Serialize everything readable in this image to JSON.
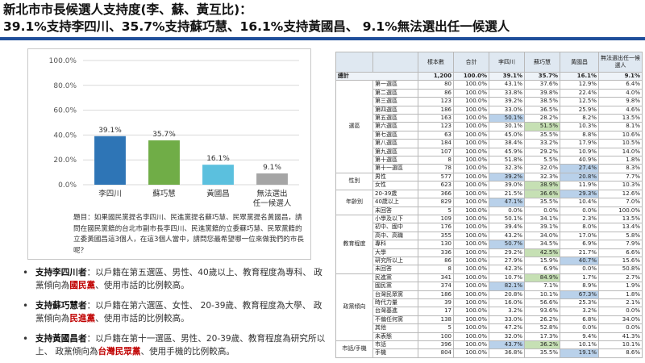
{
  "title": {
    "line1": "新北市市長候選人支持度(李、蘇、黃互比)：",
    "line2": "39.1%支持李四川、35.7%支持蘇巧慧、16.1%支持黃國昌、 9.1%無法選出任一候選人"
  },
  "chart_data": {
    "type": "bar",
    "categories": [
      "李四川",
      "蘇巧慧",
      "黃國昌",
      "無法選出任一候選人"
    ],
    "category_lines": [
      [
        "李四川"
      ],
      [
        "蘇巧慧"
      ],
      [
        "黃國昌"
      ],
      [
        "無法選出",
        "任一候選人"
      ]
    ],
    "values": [
      39.1,
      35.7,
      16.1,
      9.1
    ],
    "value_labels": [
      "39.1%",
      "35.7%",
      "16.1%",
      "9.1%"
    ],
    "colors": [
      "#2e75b6",
      "#70ad47",
      "#5bc0de",
      "#a5a5a5"
    ],
    "yticks": [
      "0.0%",
      "20.0%",
      "40.0%",
      "60.0%",
      "80.0%",
      "100.0%"
    ],
    "ylim": [
      0,
      100
    ],
    "grid": true
  },
  "question": "題目：如果國民黨提名李四川、民進黨提名蘇巧慧、民眾黨提名黃國昌，請問在國民黨籍的台北市副市長李四川、民進黨籍的立委蘇巧慧、民眾黨籍的立委黃國昌這3個人，在這3個人當中，請問您最希望哪一位來做我們的市長呢？",
  "bullets": [
    {
      "lead": "支持李四川者",
      "pre": "：以戶籍在第五選區、男性、40歲以上、教育程度為專科、 政黨傾向為",
      "party": "國民黨",
      "post": "、使用市話的比例較高。"
    },
    {
      "lead": "支持蘇巧慧者",
      "pre": "：以戶籍在第六選區、女性、 20-39歲、教育程度為大學、 政黨傾向為",
      "party": "民進黨",
      "post": "、使用市話的比例較高。"
    },
    {
      "lead": "支持黃國昌者",
      "pre": "：以戶籍在第十一選區、男性、20-39歲、教育程度為研究所以上、 政黨傾向為",
      "party": "台灣民眾黨",
      "post": "、使用手機的比例較高。"
    }
  ],
  "table": {
    "headers": [
      "",
      "",
      "樣本數",
      "合計",
      "李四川",
      "蘇巧慧",
      "黃國昌",
      "無法選出任一候選人"
    ],
    "total": [
      "總計",
      "1,200",
      "100.0%",
      "39.1%",
      "35.7%",
      "16.1%",
      "9.1%"
    ],
    "groups": [
      {
        "name": "選區",
        "rows": [
          [
            "第一選區",
            "80",
            "100.0%",
            "43.1%",
            "37.6%",
            "12.9%",
            "6.4%"
          ],
          [
            "第二選區",
            "86",
            "100.0%",
            "33.8%",
            "39.8%",
            "22.4%",
            "4.0%"
          ],
          [
            "第三選區",
            "123",
            "100.0%",
            "39.2%",
            "38.5%",
            "12.5%",
            "9.8%"
          ],
          [
            "第四選區",
            "186",
            "100.0%",
            "33.0%",
            "36.5%",
            "25.9%",
            "4.6%"
          ],
          [
            "第五選區",
            "163",
            "100.0%",
            "50.1%",
            "28.2%",
            "8.2%",
            "13.5%"
          ],
          [
            "第六選區",
            "123",
            "100.0%",
            "30.1%",
            "51.5%",
            "10.3%",
            "8.1%"
          ],
          [
            "第七選區",
            "63",
            "100.0%",
            "45.0%",
            "35.5%",
            "8.8%",
            "10.6%"
          ],
          [
            "第八選區",
            "184",
            "100.0%",
            "38.4%",
            "33.2%",
            "17.9%",
            "10.5%"
          ],
          [
            "第九選區",
            "107",
            "100.0%",
            "45.9%",
            "29.2%",
            "10.9%",
            "14.0%"
          ],
          [
            "第十選區",
            "8",
            "100.0%",
            "51.8%",
            "5.5%",
            "40.9%",
            "1.8%"
          ],
          [
            "第十一選區",
            "78",
            "100.0%",
            "32.3%",
            "32.0%",
            "27.4%",
            "8.3%"
          ]
        ]
      },
      {
        "name": "性別",
        "rows": [
          [
            "男性",
            "577",
            "100.0%",
            "39.2%",
            "32.3%",
            "20.8%",
            "7.7%"
          ],
          [
            "女性",
            "623",
            "100.0%",
            "39.0%",
            "38.9%",
            "11.9%",
            "10.3%"
          ]
        ]
      },
      {
        "name": "年齡別",
        "rows": [
          [
            "20-39歲",
            "366",
            "100.0%",
            "21.5%",
            "36.6%",
            "29.3%",
            "12.6%"
          ],
          [
            "40歲以上",
            "829",
            "100.0%",
            "47.1%",
            "35.5%",
            "10.4%",
            "7.0%"
          ],
          [
            "未回答",
            "5",
            "100.0%",
            "0.0%",
            "0.0%",
            "0.0%",
            "100.0%"
          ]
        ]
      },
      {
        "name": "教育程度",
        "rows": [
          [
            "小學及以下",
            "109",
            "100.0%",
            "50.1%",
            "34.1%",
            "2.3%",
            "13.5%"
          ],
          [
            "初中、國中",
            "176",
            "100.0%",
            "39.4%",
            "39.1%",
            "8.0%",
            "13.4%"
          ],
          [
            "高中、高職",
            "355",
            "100.0%",
            "43.2%",
            "34.0%",
            "17.0%",
            "5.8%"
          ],
          [
            "專科",
            "130",
            "100.0%",
            "50.7%",
            "34.5%",
            "6.9%",
            "7.9%"
          ],
          [
            "大學",
            "336",
            "100.0%",
            "29.2%",
            "42.5%",
            "21.7%",
            "6.6%"
          ],
          [
            "研究所以上",
            "86",
            "100.0%",
            "27.9%",
            "15.9%",
            "40.7%",
            "15.6%"
          ],
          [
            "未回答",
            "8",
            "100.0%",
            "42.3%",
            "6.9%",
            "0.0%",
            "50.8%"
          ]
        ]
      },
      {
        "name": "政黨傾向",
        "rows": [
          [
            "民進黨",
            "341",
            "100.0%",
            "10.7%",
            "84.9%",
            "1.7%",
            "2.7%"
          ],
          [
            "國民黨",
            "374",
            "100.0%",
            "82.1%",
            "7.1%",
            "8.9%",
            "1.9%"
          ],
          [
            "台灣民眾黨",
            "186",
            "100.0%",
            "20.8%",
            "10.1%",
            "67.3%",
            "1.8%"
          ],
          [
            "時代力量",
            "39",
            "100.0%",
            "16.0%",
            "56.6%",
            "25.3%",
            "2.1%"
          ],
          [
            "台灣基進",
            "17",
            "100.0%",
            "3.2%",
            "93.6%",
            "3.2%",
            "0.0%"
          ],
          [
            "不偏任何黨",
            "138",
            "100.0%",
            "33.0%",
            "26.2%",
            "6.8%",
            "34.0%"
          ],
          [
            "其他",
            "5",
            "100.0%",
            "47.2%",
            "52.8%",
            "0.0%",
            "0.0%"
          ],
          [
            "未表態",
            "100",
            "100.0%",
            "32.0%",
            "17.3%",
            "9.4%",
            "41.3%"
          ]
        ]
      },
      {
        "name": "市話/手機",
        "rows": [
          [
            "市話",
            "396",
            "100.0%",
            "43.7%",
            "36.2%",
            "10.1%",
            "10.1%"
          ],
          [
            "手機",
            "804",
            "100.0%",
            "36.8%",
            "35.5%",
            "19.1%",
            "8.6%"
          ]
        ]
      }
    ],
    "highlights": [
      {
        "g": 0,
        "r": 4,
        "c": 3,
        "color": "blue"
      },
      {
        "g": 0,
        "r": 5,
        "c": 4,
        "color": "green"
      },
      {
        "g": 0,
        "r": 10,
        "c": 5,
        "color": "blue"
      },
      {
        "g": 1,
        "r": 0,
        "c": 3,
        "color": "blue"
      },
      {
        "g": 1,
        "r": 0,
        "c": 5,
        "color": "blue"
      },
      {
        "g": 1,
        "r": 1,
        "c": 4,
        "color": "green"
      },
      {
        "g": 2,
        "r": 0,
        "c": 4,
        "color": "green"
      },
      {
        "g": 2,
        "r": 0,
        "c": 5,
        "color": "blue"
      },
      {
        "g": 2,
        "r": 1,
        "c": 3,
        "color": "blue"
      },
      {
        "g": 3,
        "r": 3,
        "c": 3,
        "color": "blue"
      },
      {
        "g": 3,
        "r": 4,
        "c": 4,
        "color": "green"
      },
      {
        "g": 3,
        "r": 5,
        "c": 5,
        "color": "blue"
      },
      {
        "g": 4,
        "r": 0,
        "c": 4,
        "color": "green"
      },
      {
        "g": 4,
        "r": 1,
        "c": 3,
        "color": "blue"
      },
      {
        "g": 4,
        "r": 2,
        "c": 5,
        "color": "blue"
      },
      {
        "g": 5,
        "r": 0,
        "c": 3,
        "color": "blue"
      },
      {
        "g": 5,
        "r": 0,
        "c": 4,
        "color": "green"
      },
      {
        "g": 5,
        "r": 1,
        "c": 5,
        "color": "blue"
      }
    ]
  }
}
